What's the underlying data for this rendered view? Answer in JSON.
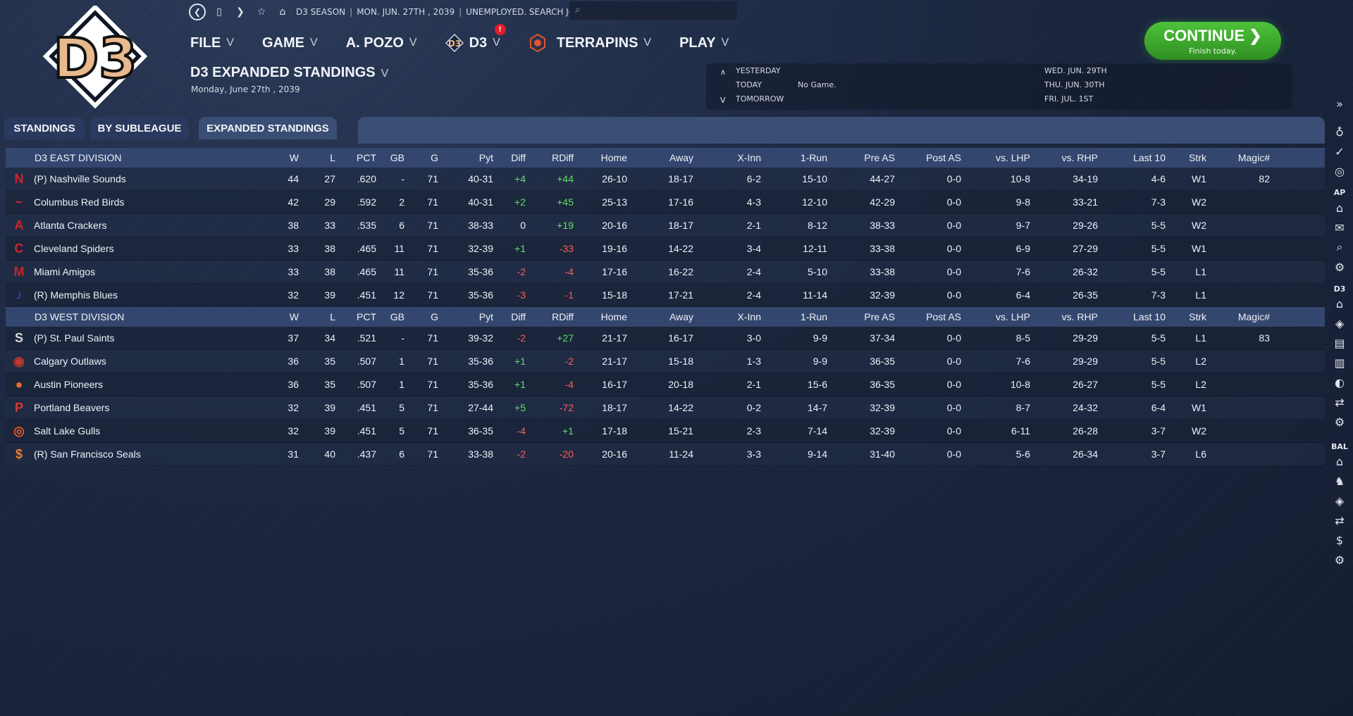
{
  "topbar": {
    "season": "D3 SEASON",
    "date": "MON. JUN. 27TH , 2039",
    "status": "UNEMPLOYED. SEARCH JOBS..."
  },
  "menu": {
    "file": "FILE",
    "game": "GAME",
    "manager": "A. POZO",
    "league": "D3",
    "league_badge": "!",
    "team": "TERRAPINS",
    "play": "PLAY"
  },
  "page": {
    "title": "D3 EXPANDED STANDINGS",
    "date": "Monday, June 27th , 2039"
  },
  "continue": {
    "label": "CONTINUE",
    "sub": "Finish today."
  },
  "schedule": {
    "yesterday": "YESTERDAY",
    "today": "TODAY",
    "today_game": "No Game.",
    "tomorrow": "TOMORROW",
    "d1": "WED. JUN. 29TH",
    "d2": "THU. JUN. 30TH",
    "d3": "FRI. JUL. 1ST"
  },
  "tabs": [
    "STANDINGS",
    "BY SUBLEAGUE",
    "EXPANDED STANDINGS"
  ],
  "columns": [
    "W",
    "L",
    "PCT",
    "GB",
    "G",
    "Pyt",
    "Diff",
    "RDiff",
    "Home",
    "Away",
    "X-Inn",
    "1-Run",
    "Pre AS",
    "Post AS",
    "vs. LHP",
    "vs. RHP",
    "Last 10",
    "Strk",
    "Magic#"
  ],
  "divisions": [
    {
      "name": "D3 EAST DIVISION",
      "teams": [
        {
          "team": "(P) Nashville Sounds",
          "logo": "N",
          "color": "#d2232a",
          "w": "44",
          "l": "27",
          "pct": ".620",
          "gb": "-",
          "g": "71",
          "pyt": "40-31",
          "diff": "+4",
          "rdiff": "+44",
          "home": "26-10",
          "away": "18-17",
          "xinn": "6-2",
          "onerun": "15-10",
          "preas": "44-27",
          "postas": "0-0",
          "vlhp": "10-8",
          "vrhp": "34-19",
          "last10": "4-6",
          "strk": "W1",
          "magic": "82"
        },
        {
          "team": "Columbus Red Birds",
          "logo": "~",
          "color": "#c8243a",
          "w": "42",
          "l": "29",
          "pct": ".592",
          "gb": "2",
          "g": "71",
          "pyt": "40-31",
          "diff": "+2",
          "rdiff": "+45",
          "home": "25-13",
          "away": "17-16",
          "xinn": "4-3",
          "onerun": "12-10",
          "preas": "42-29",
          "postas": "0-0",
          "vlhp": "9-8",
          "vrhp": "33-21",
          "last10": "7-3",
          "strk": "W2",
          "magic": ""
        },
        {
          "team": "Atlanta Crackers",
          "logo": "A",
          "color": "#d2232a",
          "w": "38",
          "l": "33",
          "pct": ".535",
          "gb": "6",
          "g": "71",
          "pyt": "38-33",
          "diff": "0",
          "rdiff": "+19",
          "home": "20-16",
          "away": "18-17",
          "xinn": "2-1",
          "onerun": "8-12",
          "preas": "38-33",
          "postas": "0-0",
          "vlhp": "9-7",
          "vrhp": "29-26",
          "last10": "5-5",
          "strk": "W2",
          "magic": ""
        },
        {
          "team": "Cleveland Spiders",
          "logo": "C",
          "color": "#d2232a",
          "w": "33",
          "l": "38",
          "pct": ".465",
          "gb": "11",
          "g": "71",
          "pyt": "32-39",
          "diff": "+1",
          "rdiff": "-33",
          "home": "19-16",
          "away": "14-22",
          "xinn": "3-4",
          "onerun": "12-11",
          "preas": "33-38",
          "postas": "0-0",
          "vlhp": "6-9",
          "vrhp": "27-29",
          "last10": "5-5",
          "strk": "W1",
          "magic": ""
        },
        {
          "team": "Miami Amigos",
          "logo": "M",
          "color": "#c0282a",
          "w": "33",
          "l": "38",
          "pct": ".465",
          "gb": "11",
          "g": "71",
          "pyt": "35-36",
          "diff": "-2",
          "rdiff": "-4",
          "home": "17-16",
          "away": "16-22",
          "xinn": "2-4",
          "onerun": "5-10",
          "preas": "33-38",
          "postas": "0-0",
          "vlhp": "7-6",
          "vrhp": "26-32",
          "last10": "5-5",
          "strk": "L1",
          "magic": ""
        },
        {
          "team": "(R) Memphis Blues",
          "logo": "♪",
          "color": "#3a4fbf",
          "w": "32",
          "l": "39",
          "pct": ".451",
          "gb": "12",
          "g": "71",
          "pyt": "35-36",
          "diff": "-3",
          "rdiff": "-1",
          "home": "15-18",
          "away": "17-21",
          "xinn": "2-4",
          "onerun": "11-14",
          "preas": "32-39",
          "postas": "0-0",
          "vlhp": "6-4",
          "vrhp": "26-35",
          "last10": "7-3",
          "strk": "L1",
          "magic": ""
        }
      ]
    },
    {
      "name": "D3 WEST DIVISION",
      "teams": [
        {
          "team": "(P) St. Paul Saints",
          "logo": "S",
          "color": "#d8d8d8",
          "w": "37",
          "l": "34",
          "pct": ".521",
          "gb": "-",
          "g": "71",
          "pyt": "39-32",
          "diff": "-2",
          "rdiff": "+27",
          "home": "21-17",
          "away": "16-17",
          "xinn": "3-0",
          "onerun": "9-9",
          "preas": "37-34",
          "postas": "0-0",
          "vlhp": "8-5",
          "vrhp": "29-29",
          "last10": "5-5",
          "strk": "L1",
          "magic": "83"
        },
        {
          "team": "Calgary Outlaws",
          "logo": "◉",
          "color": "#c0392b",
          "w": "36",
          "l": "35",
          "pct": ".507",
          "gb": "1",
          "g": "71",
          "pyt": "35-36",
          "diff": "+1",
          "rdiff": "-2",
          "home": "21-17",
          "away": "15-18",
          "xinn": "1-3",
          "onerun": "9-9",
          "preas": "36-35",
          "postas": "0-0",
          "vlhp": "7-6",
          "vrhp": "29-29",
          "last10": "5-5",
          "strk": "L2",
          "magic": ""
        },
        {
          "team": "Austin Pioneers",
          "logo": "●",
          "color": "#e8692a",
          "w": "36",
          "l": "35",
          "pct": ".507",
          "gb": "1",
          "g": "71",
          "pyt": "35-36",
          "diff": "+1",
          "rdiff": "-4",
          "home": "16-17",
          "away": "20-18",
          "xinn": "2-1",
          "onerun": "15-6",
          "preas": "36-35",
          "postas": "0-0",
          "vlhp": "10-8",
          "vrhp": "26-27",
          "last10": "5-5",
          "strk": "L2",
          "magic": ""
        },
        {
          "team": "Portland Beavers",
          "logo": "P",
          "color": "#e03535",
          "w": "32",
          "l": "39",
          "pct": ".451",
          "gb": "5",
          "g": "71",
          "pyt": "27-44",
          "diff": "+5",
          "rdiff": "-72",
          "home": "18-17",
          "away": "14-22",
          "xinn": "0-2",
          "onerun": "14-7",
          "preas": "32-39",
          "postas": "0-0",
          "vlhp": "8-7",
          "vrhp": "24-32",
          "last10": "6-4",
          "strk": "W1",
          "magic": ""
        },
        {
          "team": "Salt Lake Gulls",
          "logo": "◎",
          "color": "#e65a2a",
          "w": "32",
          "l": "39",
          "pct": ".451",
          "gb": "5",
          "g": "71",
          "pyt": "36-35",
          "diff": "-4",
          "rdiff": "+1",
          "home": "17-18",
          "away": "15-21",
          "xinn": "2-3",
          "onerun": "7-14",
          "preas": "32-39",
          "postas": "0-0",
          "vlhp": "6-11",
          "vrhp": "26-28",
          "last10": "3-7",
          "strk": "W2",
          "magic": ""
        },
        {
          "team": "(R) San Francisco Seals",
          "logo": "$",
          "color": "#e87d2a",
          "w": "31",
          "l": "40",
          "pct": ".437",
          "gb": "6",
          "g": "71",
          "pyt": "33-38",
          "diff": "-2",
          "rdiff": "-20",
          "home": "20-16",
          "away": "11-24",
          "xinn": "3-3",
          "onerun": "9-14",
          "preas": "31-40",
          "postas": "0-0",
          "vlhp": "5-6",
          "vrhp": "26-34",
          "last10": "3-7",
          "strk": "L6",
          "magic": ""
        }
      ]
    }
  ],
  "sidebar": {
    "label_ap": "AP",
    "label_d3": "D3",
    "label_bal": "BAL"
  },
  "colors": {
    "accent_green": "#3cb82e",
    "positive": "#5fe06a",
    "negative": "#ff5c5c",
    "header_bg": "#33466e"
  }
}
